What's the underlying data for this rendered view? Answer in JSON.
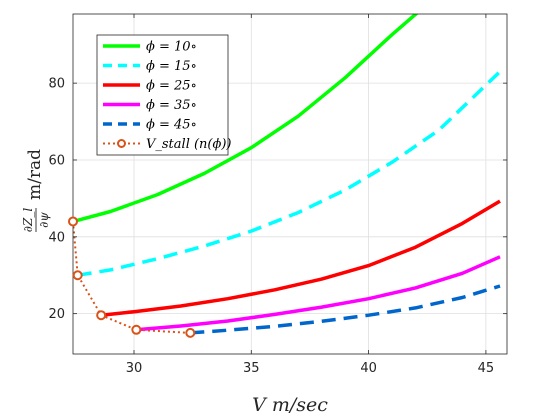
{
  "chart_data": {
    "type": "line",
    "xlabel": "V  m/sec",
    "ylabel_parts": {
      "numerator": "∂Z_l",
      "denominator": "∂ψ",
      "unit": "m/rad"
    },
    "xlim": [
      27.4,
      45.9
    ],
    "ylim": [
      9.5,
      98
    ],
    "xticks": [
      30,
      35,
      40,
      45
    ],
    "yticks": [
      20,
      40,
      60,
      80
    ],
    "grid": true,
    "legend_position": "top-left",
    "series": [
      {
        "name": "ϕ = 10∘",
        "color": "#00ff00",
        "dash": "solid",
        "x": [
          27.4,
          29,
          31,
          33,
          35,
          37,
          39,
          41,
          42.2
        ],
        "y": [
          44,
          46.6,
          51,
          56.5,
          63.2,
          71.4,
          81.4,
          92.6,
          99
        ]
      },
      {
        "name": "ϕ = 15∘",
        "color": "#00ffff",
        "dash": "dashed",
        "x": [
          27.6,
          29,
          31,
          33,
          35,
          37,
          39,
          41,
          43,
          45.6
        ],
        "y": [
          30,
          31.4,
          34.3,
          37.6,
          41.5,
          46.3,
          52.2,
          59.4,
          67.8,
          83
        ]
      },
      {
        "name": "ϕ = 25∘",
        "color": "#ff0000",
        "dash": "solid",
        "x": [
          28.6,
          30,
          32,
          34,
          36,
          38,
          40,
          42,
          44,
          45.6
        ],
        "y": [
          19.6,
          20.5,
          22,
          23.9,
          26.2,
          29,
          32.5,
          37.3,
          43.5,
          49.3
        ]
      },
      {
        "name": "ϕ = 35∘",
        "color": "#ff00ff",
        "dash": "solid",
        "x": [
          30.1,
          32,
          34,
          36,
          38,
          40,
          42,
          44,
          45.6
        ],
        "y": [
          15.8,
          16.8,
          18.1,
          19.8,
          21.7,
          23.9,
          26.7,
          30.5,
          34.8
        ]
      },
      {
        "name": "ϕ = 45∘",
        "color": "#0066cc",
        "dash": "dashed",
        "x": [
          32.4,
          34,
          36,
          38,
          40,
          42,
          44,
          45.6
        ],
        "y": [
          15,
          15.7,
          16.7,
          18,
          19.6,
          21.5,
          24.2,
          27.2
        ]
      },
      {
        "name": "V_stall (n(ϕ))",
        "color": "#d95319",
        "dash": "dotted",
        "marker": "circle",
        "x": [
          27.4,
          27.6,
          28.6,
          30.1,
          32.4
        ],
        "y": [
          44,
          30,
          19.6,
          15.8,
          15
        ]
      }
    ]
  }
}
